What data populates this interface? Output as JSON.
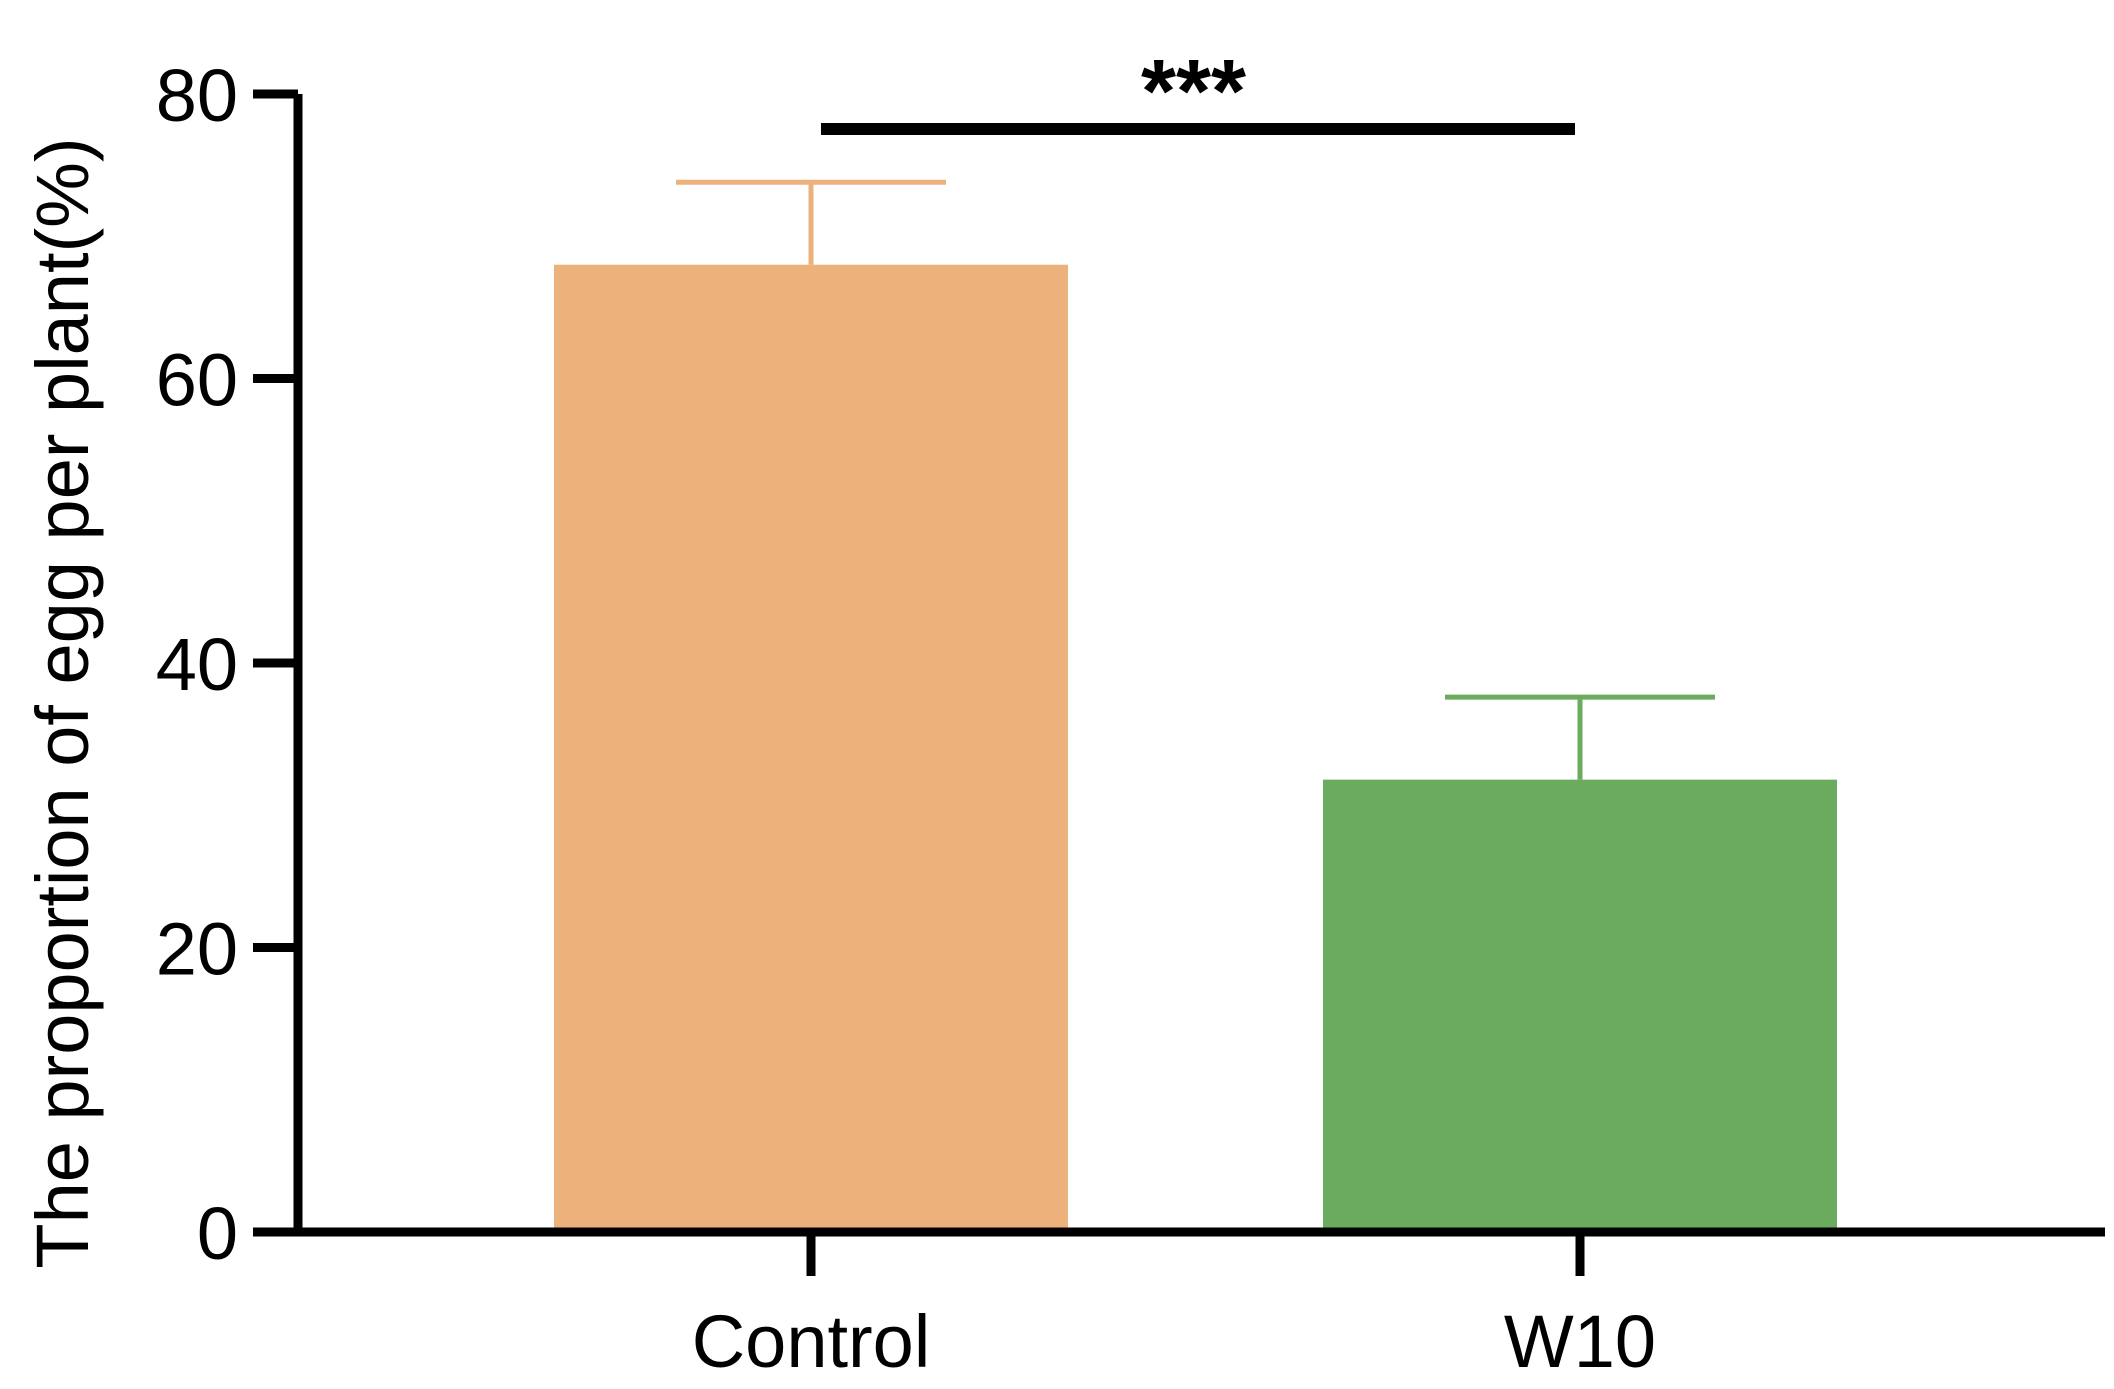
{
  "chart_data": {
    "type": "bar",
    "title": "",
    "xlabel": "",
    "ylabel": "The proportion of egg per plant(%)",
    "categories": [
      "Control",
      "W10"
    ],
    "values": [
      68,
      31.8
    ],
    "errors": [
      5.8,
      5.8
    ],
    "colors": [
      "#EDB27C",
      "#6AAB5E"
    ],
    "ylim": [
      0,
      80
    ],
    "yticks": [
      0,
      20,
      40,
      60,
      80
    ],
    "ytick_labels": [
      "0",
      "20",
      "40",
      "60",
      "80"
    ],
    "grid": false,
    "significance": {
      "between": [
        "Control",
        "W10"
      ],
      "label": "***"
    }
  }
}
